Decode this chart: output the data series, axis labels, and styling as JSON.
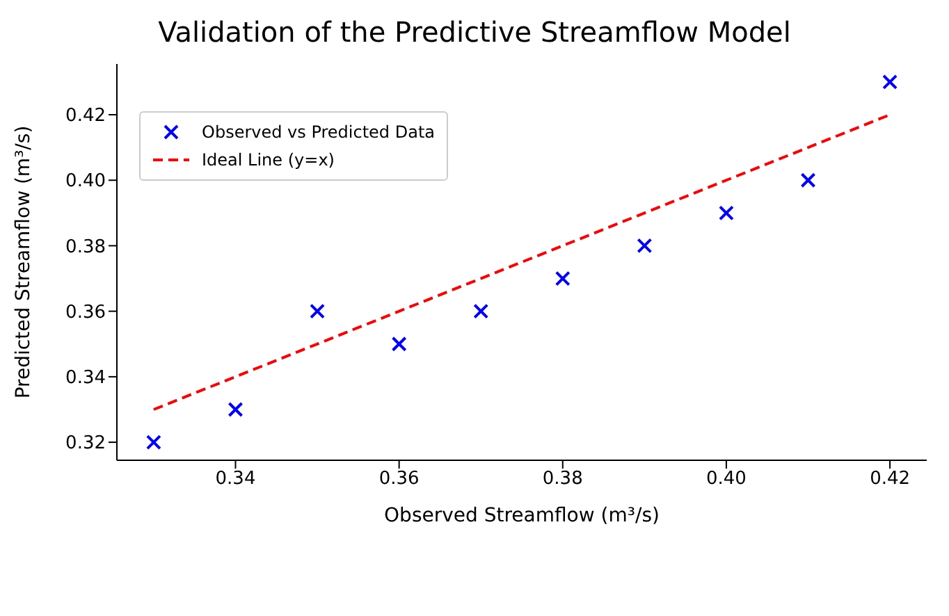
{
  "chart_data": {
    "type": "scatter",
    "title": "Validation of the Predictive Streamflow Model",
    "xlabel": "Observed Streamflow (m³/s)",
    "ylabel": "Predicted Streamflow (m³/s)",
    "x": [
      0.33,
      0.34,
      0.35,
      0.36,
      0.37,
      0.38,
      0.39,
      0.4,
      0.41,
      0.42
    ],
    "series": [
      {
        "name": "Observed vs Predicted Data",
        "color": "#0000ff",
        "marker": "cross",
        "values": [
          0.32,
          0.33,
          0.36,
          0.35,
          0.36,
          0.37,
          0.38,
          0.39,
          0.4,
          0.43
        ]
      },
      {
        "name": "Ideal Line (y=x)",
        "type": "line",
        "color": "#ff0000",
        "marker": "none",
        "line_style": "dashed",
        "x": [
          0.33,
          0.42
        ],
        "values": [
          0.33,
          0.42
        ]
      }
    ],
    "xlim": [
      0.3255,
      0.4245
    ],
    "xticks": [
      {
        "value": 0.34,
        "label": "0.34"
      },
      {
        "value": 0.36,
        "label": "0.36"
      },
      {
        "value": 0.38,
        "label": "0.38"
      },
      {
        "value": 0.4,
        "label": "0.40"
      },
      {
        "value": 0.42,
        "label": "0.42"
      }
    ],
    "ylim": [
      0.3145,
      0.4355
    ],
    "yticks": [
      {
        "value": 0.32,
        "label": "0.32"
      },
      {
        "value": 0.34,
        "label": "0.34"
      },
      {
        "value": 0.36,
        "label": "0.36"
      },
      {
        "value": 0.38,
        "label": "0.38"
      },
      {
        "value": 0.4,
        "label": "0.40"
      },
      {
        "value": 0.42,
        "label": "0.42"
      }
    ],
    "grid": false,
    "legend": "top left"
  }
}
